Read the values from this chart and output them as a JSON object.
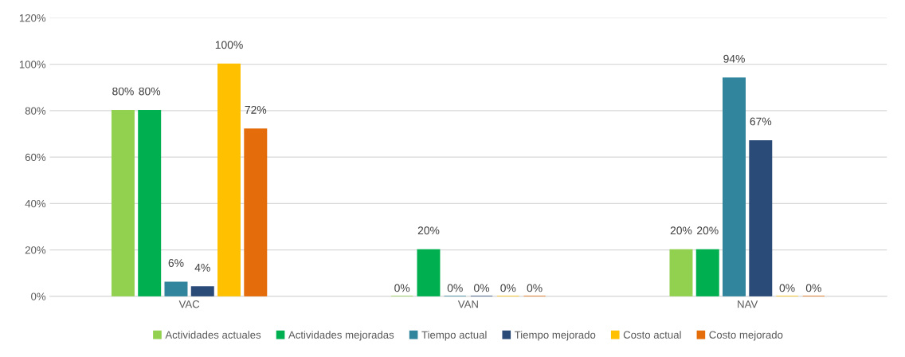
{
  "chart_data": {
    "type": "bar",
    "categories": [
      "VAC",
      "VAN",
      "NAV"
    ],
    "series": [
      {
        "name": "Actividades actuales",
        "color": "#92d050",
        "values": [
          80,
          0,
          20
        ],
        "value_labels": [
          "80%",
          "0%",
          "20%"
        ]
      },
      {
        "name": "Actividades mejoradas",
        "color": "#00b050",
        "values": [
          80,
          20,
          20
        ],
        "value_labels": [
          "80%",
          "20%",
          "20%"
        ]
      },
      {
        "name": "Tiempo actual",
        "color": "#31859c",
        "values": [
          6,
          0,
          94
        ],
        "value_labels": [
          "6%",
          "0%",
          "94%"
        ]
      },
      {
        "name": "Tiempo mejorado",
        "color": "#2a4a78",
        "values": [
          4,
          0,
          67
        ],
        "value_labels": [
          "4%",
          "0%",
          "67%"
        ]
      },
      {
        "name": "Costo actual",
        "color": "#ffc000",
        "values": [
          100,
          0,
          0
        ],
        "value_labels": [
          "100%",
          "0%",
          "0%"
        ]
      },
      {
        "name": "Costo mejorado",
        "color": "#e46c0a",
        "values": [
          72,
          0,
          0
        ],
        "value_labels": [
          "72%",
          "0%",
          "0%"
        ]
      }
    ],
    "ylim": [
      0,
      120
    ],
    "yticks": [
      {
        "value": 0,
        "label": "0%"
      },
      {
        "value": 20,
        "label": "20%"
      },
      {
        "value": 40,
        "label": "40%"
      },
      {
        "value": 60,
        "label": "60%"
      },
      {
        "value": 80,
        "label": "80%"
      },
      {
        "value": 100,
        "label": "100%"
      },
      {
        "value": 120,
        "label": "120%"
      }
    ],
    "grid": "y",
    "legend": "bottom"
  }
}
